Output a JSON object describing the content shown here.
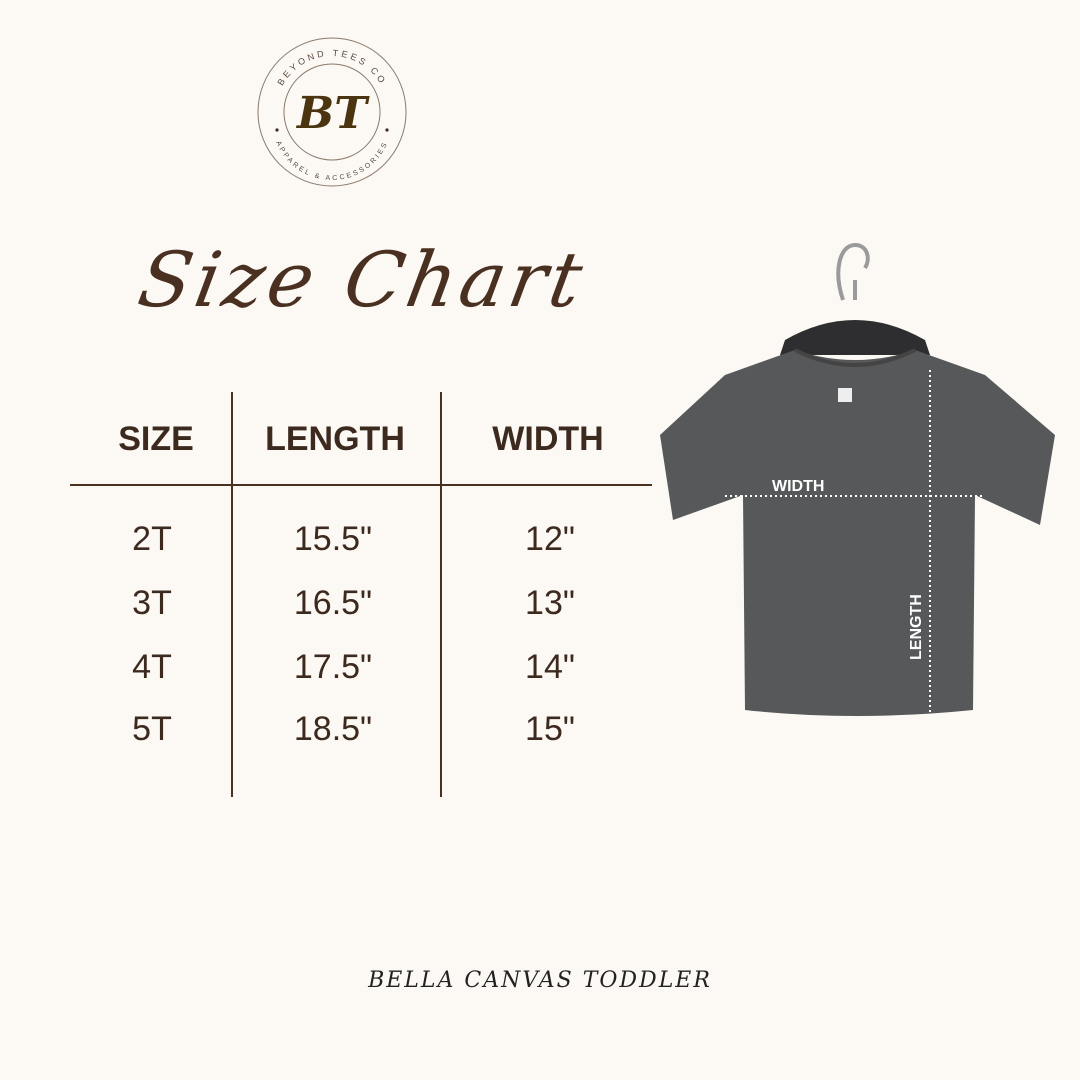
{
  "logo": {
    "initials": "BT",
    "top_text": "BEYOND TEES CO",
    "bottom_text": "APPAREL & ACCESSORIES"
  },
  "title": "Size Chart",
  "table": {
    "headers": [
      "SIZE",
      "LENGTH",
      "WIDTH"
    ],
    "rows": [
      [
        "2T",
        "15.5\"",
        "12\""
      ],
      [
        "3T",
        "16.5\"",
        "13\""
      ],
      [
        "4T",
        "17.5\"",
        "14\""
      ],
      [
        "5T",
        "18.5\"",
        "15\""
      ]
    ]
  },
  "shirt": {
    "width_label": "WIDTH",
    "length_label": "LENGTH",
    "color": "#56585a"
  },
  "footer": "BELLA CANVAS TODDLER"
}
